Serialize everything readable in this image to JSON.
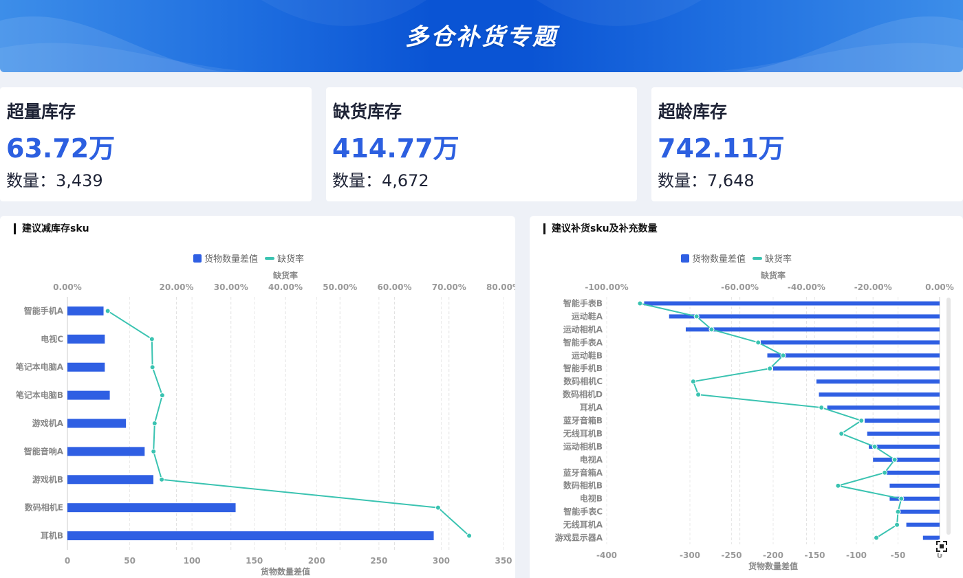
{
  "header": {
    "title": "多仓补货专题"
  },
  "kpis": [
    {
      "title": "超量库存",
      "value": "63.72万",
      "count": "数量：3,439"
    },
    {
      "title": "缺货库存",
      "value": "414.77万",
      "count": "数量：4,672"
    },
    {
      "title": "超龄库存",
      "value": "742.11万",
      "count": "数量：7,648"
    }
  ],
  "colors": {
    "bar": "#2f5fe3",
    "line": "#3ac3b1",
    "accent": "#2c5fe0"
  },
  "left_panel": {
    "title": "建议减库存sku",
    "legend": {
      "bar": "货物数量差值",
      "line": "缺货率"
    }
  },
  "right_panel": {
    "title": "建议补货sku及补充数量",
    "legend": {
      "bar": "货物数量差值",
      "line": "缺货率"
    }
  },
  "icons": {
    "fullscreen": "fullscreen-icon"
  },
  "chart_data": [
    {
      "type": "bar",
      "orientation": "horizontal",
      "categories": [
        "智能手机A",
        "电视C",
        "笔记本电脑A",
        "笔记本电脑B",
        "游戏机A",
        "智能音响A",
        "游戏机B",
        "数码相机E",
        "耳机B"
      ],
      "series": [
        {
          "name": "货物数量差值",
          "values": [
            29,
            30,
            30,
            34,
            47,
            62,
            69,
            135,
            294
          ]
        },
        {
          "name": "缺货率",
          "values": [
            7.4,
            15.5,
            15.6,
            17.4,
            16.0,
            15.8,
            17.3,
            68.0,
            73.7
          ]
        }
      ],
      "xlabel": "货物数量差值",
      "x2label": "缺货率",
      "xlim": [
        0,
        350
      ],
      "xticks": [
        "0",
        "50",
        "100",
        "150",
        "200",
        "250",
        "300",
        "350"
      ],
      "x2lim": [
        0,
        80
      ],
      "x2ticks": [
        "0.00%",
        "20.00%",
        "30.00%",
        "40.00%",
        "50.00%",
        "60.00%",
        "70.00%",
        "80.00%"
      ],
      "x2tick_values": [
        0,
        20,
        30,
        40,
        50,
        60,
        70,
        80
      ],
      "grid": true,
      "legend": "top-center"
    },
    {
      "type": "bar",
      "orientation": "horizontal",
      "categories": [
        "智能手表B",
        "运动鞋A",
        "运动相机A",
        "智能手表A",
        "运动鞋B",
        "智能手机B",
        "数码相机C",
        "数码相机D",
        "耳机A",
        "蓝牙音箱B",
        "无线耳机B",
        "运动相机B",
        "电视A",
        "蓝牙音箱A",
        "数码相机B",
        "电视B",
        "智能手表C",
        "无线耳机A",
        "游戏显示器A"
      ],
      "series": [
        {
          "name": "货物数量差值",
          "values": [
            -355,
            -325,
            -305,
            -215,
            -207,
            -200,
            -148,
            -145,
            -135,
            -90,
            -87,
            -85,
            -80,
            -65,
            -60,
            -60,
            -52,
            -40,
            -20
          ]
        },
        {
          "name": "缺货率",
          "values": [
            -90.0,
            -73.0,
            -68.5,
            -54.5,
            -47.0,
            -51.0,
            -74.0,
            -72.5,
            -35.5,
            -23.5,
            -29.5,
            -19.5,
            -13.5,
            -16.5,
            -30.5,
            -11.5,
            -12.5,
            -12.8,
            -19.0
          ]
        }
      ],
      "xlabel": "货物数量差值",
      "x2label": "缺货率",
      "xlim": [
        -400,
        0
      ],
      "xticks": [
        "-400",
        "-300",
        "-250",
        "-200",
        "-150",
        "-100",
        "-50",
        "0"
      ],
      "xtick_values": [
        -400,
        -300,
        -250,
        -200,
        -150,
        -100,
        -50,
        0
      ],
      "x2lim": [
        -100,
        0
      ],
      "x2ticks": [
        "-100.00%",
        "-60.00%",
        "-40.00%",
        "-20.00%",
        "0.00%"
      ],
      "x2tick_values": [
        -100,
        -60,
        -40,
        -20,
        0
      ],
      "grid": true,
      "legend": "top-center"
    }
  ]
}
